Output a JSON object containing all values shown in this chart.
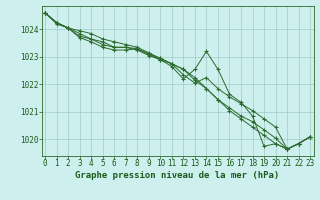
{
  "background_color": "#cdf0ee",
  "grid_color": "#a0ccc8",
  "line_color": "#2d6a2d",
  "marker_color": "#2d6a2d",
  "xlabel": "Graphe pression niveau de la mer (hPa)",
  "xlabel_fontsize": 6.5,
  "xlabel_color": "#1a5a1a",
  "tick_label_color": "#1a5a1a",
  "tick_fontsize": 5.5,
  "ylim": [
    1019.4,
    1024.85
  ],
  "xlim": [
    -0.3,
    23.3
  ],
  "yticks": [
    1020,
    1021,
    1022,
    1023,
    1024
  ],
  "xticks": [
    0,
    1,
    2,
    3,
    4,
    5,
    6,
    7,
    8,
    9,
    10,
    11,
    12,
    13,
    14,
    15,
    16,
    17,
    18,
    19,
    20,
    21,
    22,
    23
  ],
  "series": [
    [
      1024.6,
      1024.25,
      1024.05,
      1023.7,
      1023.55,
      1023.35,
      1023.25,
      1023.25,
      1023.3,
      1023.1,
      1022.9,
      1022.65,
      1022.2,
      1022.55,
      1023.2,
      1022.55,
      1021.65,
      1021.35,
      1020.85,
      1019.75,
      1019.85,
      1019.65,
      1019.85,
      1020.1
    ],
    [
      1024.6,
      1024.2,
      1024.05,
      1023.75,
      1023.65,
      1023.45,
      1023.35,
      1023.35,
      1023.25,
      1023.05,
      1022.9,
      1022.75,
      1022.35,
      1022.05,
      1022.25,
      1021.85,
      1021.55,
      1021.3,
      1021.05,
      1020.75,
      1020.45,
      1019.65,
      1019.85,
      1020.1
    ],
    [
      1024.6,
      1024.25,
      1024.05,
      1023.85,
      1023.65,
      1023.55,
      1023.35,
      1023.35,
      1023.3,
      1023.1,
      1022.95,
      1022.75,
      1022.55,
      1022.25,
      1021.85,
      1021.45,
      1021.15,
      1020.85,
      1020.65,
      1020.35,
      1020.05,
      1019.65,
      1019.85,
      1020.1
    ],
    [
      1024.6,
      1024.25,
      1024.05,
      1023.95,
      1023.85,
      1023.65,
      1023.55,
      1023.45,
      1023.35,
      1023.15,
      1022.95,
      1022.75,
      1022.55,
      1022.15,
      1021.85,
      1021.45,
      1021.05,
      1020.75,
      1020.45,
      1020.15,
      1019.85,
      1019.65,
      1019.85,
      1020.1
    ]
  ]
}
